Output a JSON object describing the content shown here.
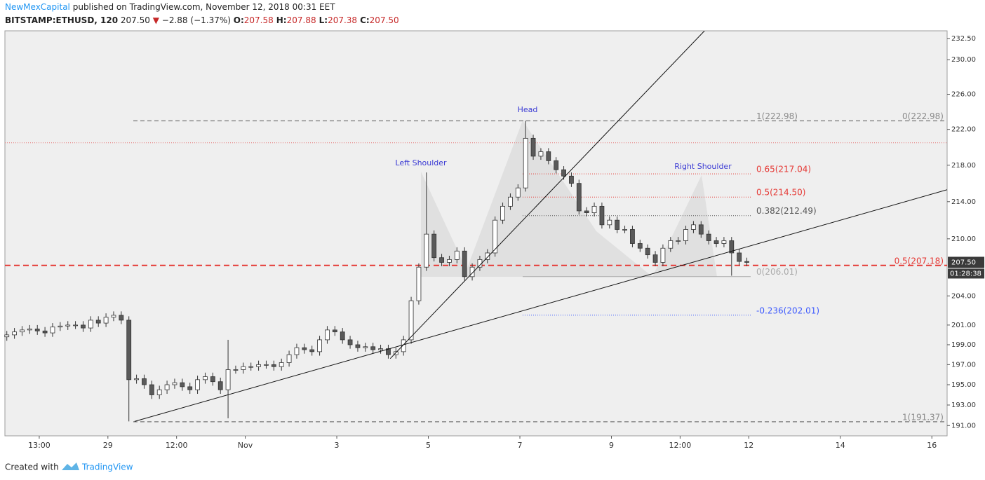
{
  "header": {
    "author": "NewMexCapital",
    "published": "published on TradingView.com, November 12, 2018 00:31 EET",
    "symbol": "BITSTAMP:ETHUSD, 120",
    "last": "207.50",
    "arrow": "▼",
    "change": "−2.88 (−1.37%)",
    "ohlc": [
      {
        "key": "O:",
        "value": "207.58"
      },
      {
        "key": "H:",
        "value": "207.88"
      },
      {
        "key": "L:",
        "value": "207.38"
      },
      {
        "key": "C:",
        "value": "207.50"
      }
    ]
  },
  "footer": {
    "created": "Created with",
    "brand": "TradingView"
  },
  "chart_data": {
    "type": "candlestick",
    "log_scale": true,
    "grid": false,
    "up_color": "#ffffff",
    "down_color": "#5a5a5a",
    "edge_color": "#333333",
    "xlim": [
      -0.5,
      246.5
    ],
    "ylim": [
      190.0,
      233.4
    ],
    "xticks": [
      {
        "value": 8.5,
        "label": "13:00"
      },
      {
        "value": 26.5,
        "label": "29"
      },
      {
        "value": 44.5,
        "label": "12:00"
      },
      {
        "value": 62.5,
        "label": "Nov"
      },
      {
        "value": 86.5,
        "label": "3"
      },
      {
        "value": 110.5,
        "label": "5"
      },
      {
        "value": 134.5,
        "label": "7"
      },
      {
        "value": 158.5,
        "label": "9"
      },
      {
        "value": 176.5,
        "label": "12:00"
      },
      {
        "value": 194.5,
        "label": "12"
      },
      {
        "value": 218.5,
        "label": "14"
      },
      {
        "value": 242.5,
        "label": "16"
      }
    ],
    "yticks": [
      {
        "value": 191,
        "label": "191.00"
      },
      {
        "value": 193,
        "label": "193.00"
      },
      {
        "value": 195,
        "label": "195.00"
      },
      {
        "value": 197,
        "label": "197.00"
      },
      {
        "value": 199,
        "label": "199.00"
      },
      {
        "value": 201,
        "label": "201.00"
      },
      {
        "value": 204,
        "label": "204.00"
      },
      {
        "value": 210,
        "label": "210.00"
      },
      {
        "value": 214,
        "label": "214.00"
      },
      {
        "value": 218,
        "label": "218.00"
      },
      {
        "value": 222,
        "label": "222.00"
      },
      {
        "value": 226,
        "label": "226.00"
      },
      {
        "value": 230,
        "label": "230.00"
      },
      {
        "value": 232.5,
        "label": "232.50"
      }
    ],
    "x": [
      0,
      2,
      4,
      6,
      8,
      10,
      12,
      14,
      16,
      18,
      20,
      22,
      24,
      26,
      28,
      30,
      32,
      34,
      36,
      38,
      40,
      42,
      44,
      46,
      48,
      50,
      52,
      54,
      56,
      58,
      60,
      62,
      64,
      66,
      68,
      70,
      72,
      74,
      76,
      78,
      80,
      82,
      84,
      86,
      88,
      90,
      92,
      94,
      96,
      98,
      100,
      102,
      104,
      106,
      108,
      110,
      112,
      114,
      116,
      118,
      120,
      122,
      124,
      126,
      128,
      130,
      132,
      134,
      136,
      138,
      140,
      142,
      144,
      146,
      148,
      150,
      152,
      154,
      156,
      158,
      160,
      162,
      164,
      166,
      168,
      170,
      172,
      174,
      176,
      178,
      180,
      182,
      184,
      186,
      188,
      190,
      192,
      194
    ],
    "open": [
      199.8,
      200.0,
      200.3,
      200.5,
      200.6,
      200.4,
      200.2,
      200.8,
      200.9,
      201.0,
      201.0,
      200.7,
      201.5,
      201.2,
      201.8,
      202.0,
      201.5,
      195.5,
      195.6,
      195.0,
      194.0,
      194.5,
      195.0,
      195.2,
      194.8,
      194.5,
      195.5,
      195.8,
      195.3,
      194.5,
      196.5,
      196.5,
      196.8,
      196.8,
      197.0,
      197.0,
      196.8,
      197.2,
      198.0,
      198.7,
      198.5,
      198.3,
      199.5,
      200.5,
      200.3,
      199.5,
      199.0,
      198.7,
      198.8,
      198.5,
      198.6,
      198.0,
      198.3,
      199.5,
      203.5,
      207.0,
      210.5,
      208.0,
      207.5,
      207.8,
      208.7,
      206.0,
      207.0,
      207.8,
      208.5,
      212.0,
      213.5,
      214.5,
      215.5,
      221.0,
      219.0,
      219.5,
      218.5,
      217.5,
      216.8,
      216.0,
      213.0,
      212.8,
      213.5,
      211.5,
      212.0,
      211.0,
      211.0,
      209.5,
      209.0,
      208.3,
      207.5,
      209.0,
      209.8,
      209.8,
      211.0,
      211.5,
      210.5,
      209.8,
      209.5,
      209.8,
      208.5,
      207.6
    ],
    "high": [
      200.4,
      200.7,
      200.9,
      201.0,
      201.0,
      200.8,
      201.2,
      201.3,
      201.4,
      201.4,
      201.4,
      201.9,
      201.9,
      202.2,
      202.4,
      202.4,
      201.9,
      196.0,
      196.0,
      195.4,
      194.9,
      195.4,
      195.6,
      195.6,
      195.2,
      195.9,
      196.2,
      196.2,
      195.7,
      199.5,
      196.9,
      197.2,
      197.2,
      197.4,
      197.4,
      197.4,
      197.6,
      198.4,
      199.1,
      199.1,
      198.9,
      199.9,
      200.9,
      200.9,
      200.7,
      199.9,
      199.4,
      199.2,
      199.2,
      199.0,
      199.0,
      198.7,
      199.9,
      203.9,
      207.4,
      217.2,
      210.9,
      208.4,
      208.2,
      209.1,
      209.1,
      207.4,
      208.2,
      208.9,
      212.4,
      213.9,
      214.9,
      215.9,
      222.98,
      221.4,
      219.9,
      219.9,
      218.9,
      217.9,
      217.2,
      216.4,
      213.4,
      213.9,
      213.9,
      212.4,
      212.4,
      211.4,
      211.4,
      209.9,
      209.4,
      208.7,
      209.4,
      210.2,
      210.2,
      211.4,
      211.9,
      211.9,
      210.9,
      210.2,
      210.2,
      210.2,
      208.9,
      208.0
    ],
    "low": [
      199.4,
      199.6,
      199.9,
      200.1,
      200.0,
      199.8,
      199.8,
      200.4,
      200.5,
      200.6,
      200.3,
      200.3,
      200.8,
      200.8,
      201.4,
      201.1,
      191.4,
      195.1,
      194.6,
      193.6,
      193.6,
      194.1,
      194.6,
      194.4,
      194.1,
      194.1,
      195.1,
      194.9,
      194.1,
      191.7,
      196.1,
      196.1,
      196.4,
      196.4,
      196.6,
      196.4,
      196.4,
      196.8,
      197.6,
      198.1,
      197.9,
      197.9,
      199.1,
      199.9,
      199.1,
      198.6,
      198.3,
      198.3,
      198.1,
      198.1,
      197.6,
      197.6,
      197.9,
      199.1,
      203.1,
      206.6,
      207.6,
      207.1,
      207.1,
      207.4,
      205.6,
      205.6,
      206.6,
      207.4,
      208.1,
      211.6,
      213.1,
      214.1,
      215.1,
      218.6,
      218.6,
      218.1,
      217.1,
      216.4,
      215.6,
      212.6,
      212.4,
      212.4,
      211.1,
      211.1,
      210.6,
      210.6,
      209.1,
      208.6,
      207.9,
      207.1,
      207.1,
      208.6,
      209.4,
      209.4,
      210.6,
      210.1,
      209.4,
      209.1,
      209.1,
      206.1,
      207.2,
      207.1
    ],
    "close": [
      200.0,
      200.3,
      200.5,
      200.6,
      200.4,
      200.2,
      200.8,
      200.9,
      201.0,
      201.0,
      200.7,
      201.5,
      201.2,
      201.8,
      202.0,
      201.5,
      195.5,
      195.6,
      195.0,
      194.0,
      194.5,
      195.0,
      195.2,
      194.8,
      194.5,
      195.5,
      195.8,
      195.3,
      194.5,
      196.5,
      196.5,
      196.8,
      196.8,
      197.0,
      197.0,
      196.8,
      197.2,
      198.0,
      198.7,
      198.5,
      198.3,
      199.5,
      200.5,
      200.3,
      199.5,
      199.0,
      198.7,
      198.8,
      198.5,
      198.6,
      198.0,
      198.3,
      199.5,
      203.5,
      207.0,
      210.5,
      208.0,
      207.5,
      207.8,
      208.7,
      206.0,
      207.0,
      207.8,
      208.5,
      212.0,
      213.5,
      214.5,
      215.5,
      221.0,
      219.0,
      219.5,
      218.5,
      217.5,
      216.8,
      216.0,
      213.0,
      212.8,
      213.5,
      211.5,
      212.0,
      211.0,
      211.0,
      209.5,
      209.0,
      208.3,
      207.5,
      209.0,
      209.8,
      209.8,
      211.0,
      211.5,
      210.5,
      209.8,
      209.5,
      209.8,
      208.5,
      207.6,
      207.5
    ],
    "levels": [
      {
        "value": 222.98,
        "label_left": "1(222.98)",
        "label_right": "0(222.98)",
        "color": "#8a8a8a",
        "style": "dashed"
      },
      {
        "value": 220.5,
        "color": "#e57373",
        "style": "dotted"
      },
      {
        "value": 217.04,
        "label_left": "0.65(217.04)",
        "color": "#e53935",
        "style": "dotted"
      },
      {
        "value": 214.5,
        "label_left": "0.5(214.50)",
        "color": "#e53935",
        "style": "dotted"
      },
      {
        "value": 212.49,
        "label_left": "0.382(212.49)",
        "color": "#555555",
        "style": "dotted"
      },
      {
        "value": 207.18,
        "label_right": "0.5(207.18)",
        "color": "#e53935",
        "style": "bold-dashed"
      },
      {
        "value": 206.01,
        "label_left": "0(206.01)",
        "color": "#aaaaaa",
        "style": "solid"
      },
      {
        "value": 202.01,
        "label_left": "-0.236(202.01)",
        "color": "#3d5afe",
        "style": "dotted"
      },
      {
        "value": 191.37,
        "label_right": "1(191.37)",
        "color": "#8a8a8a",
        "style": "dashed"
      }
    ],
    "trendlines": [
      {
        "x": [
          33.5,
          246.5
        ],
        "y": [
          191.4,
          215.3
        ]
      },
      {
        "x": [
          100.5,
          182.9
        ],
        "y": [
          197.6,
          233.4
        ]
      }
    ],
    "annotations": [
      "Left Shoulder",
      "Head",
      "Right Shoulder"
    ],
    "last_price": {
      "value": 207.5,
      "label": "207.50"
    },
    "countdown": "01:28:38"
  }
}
